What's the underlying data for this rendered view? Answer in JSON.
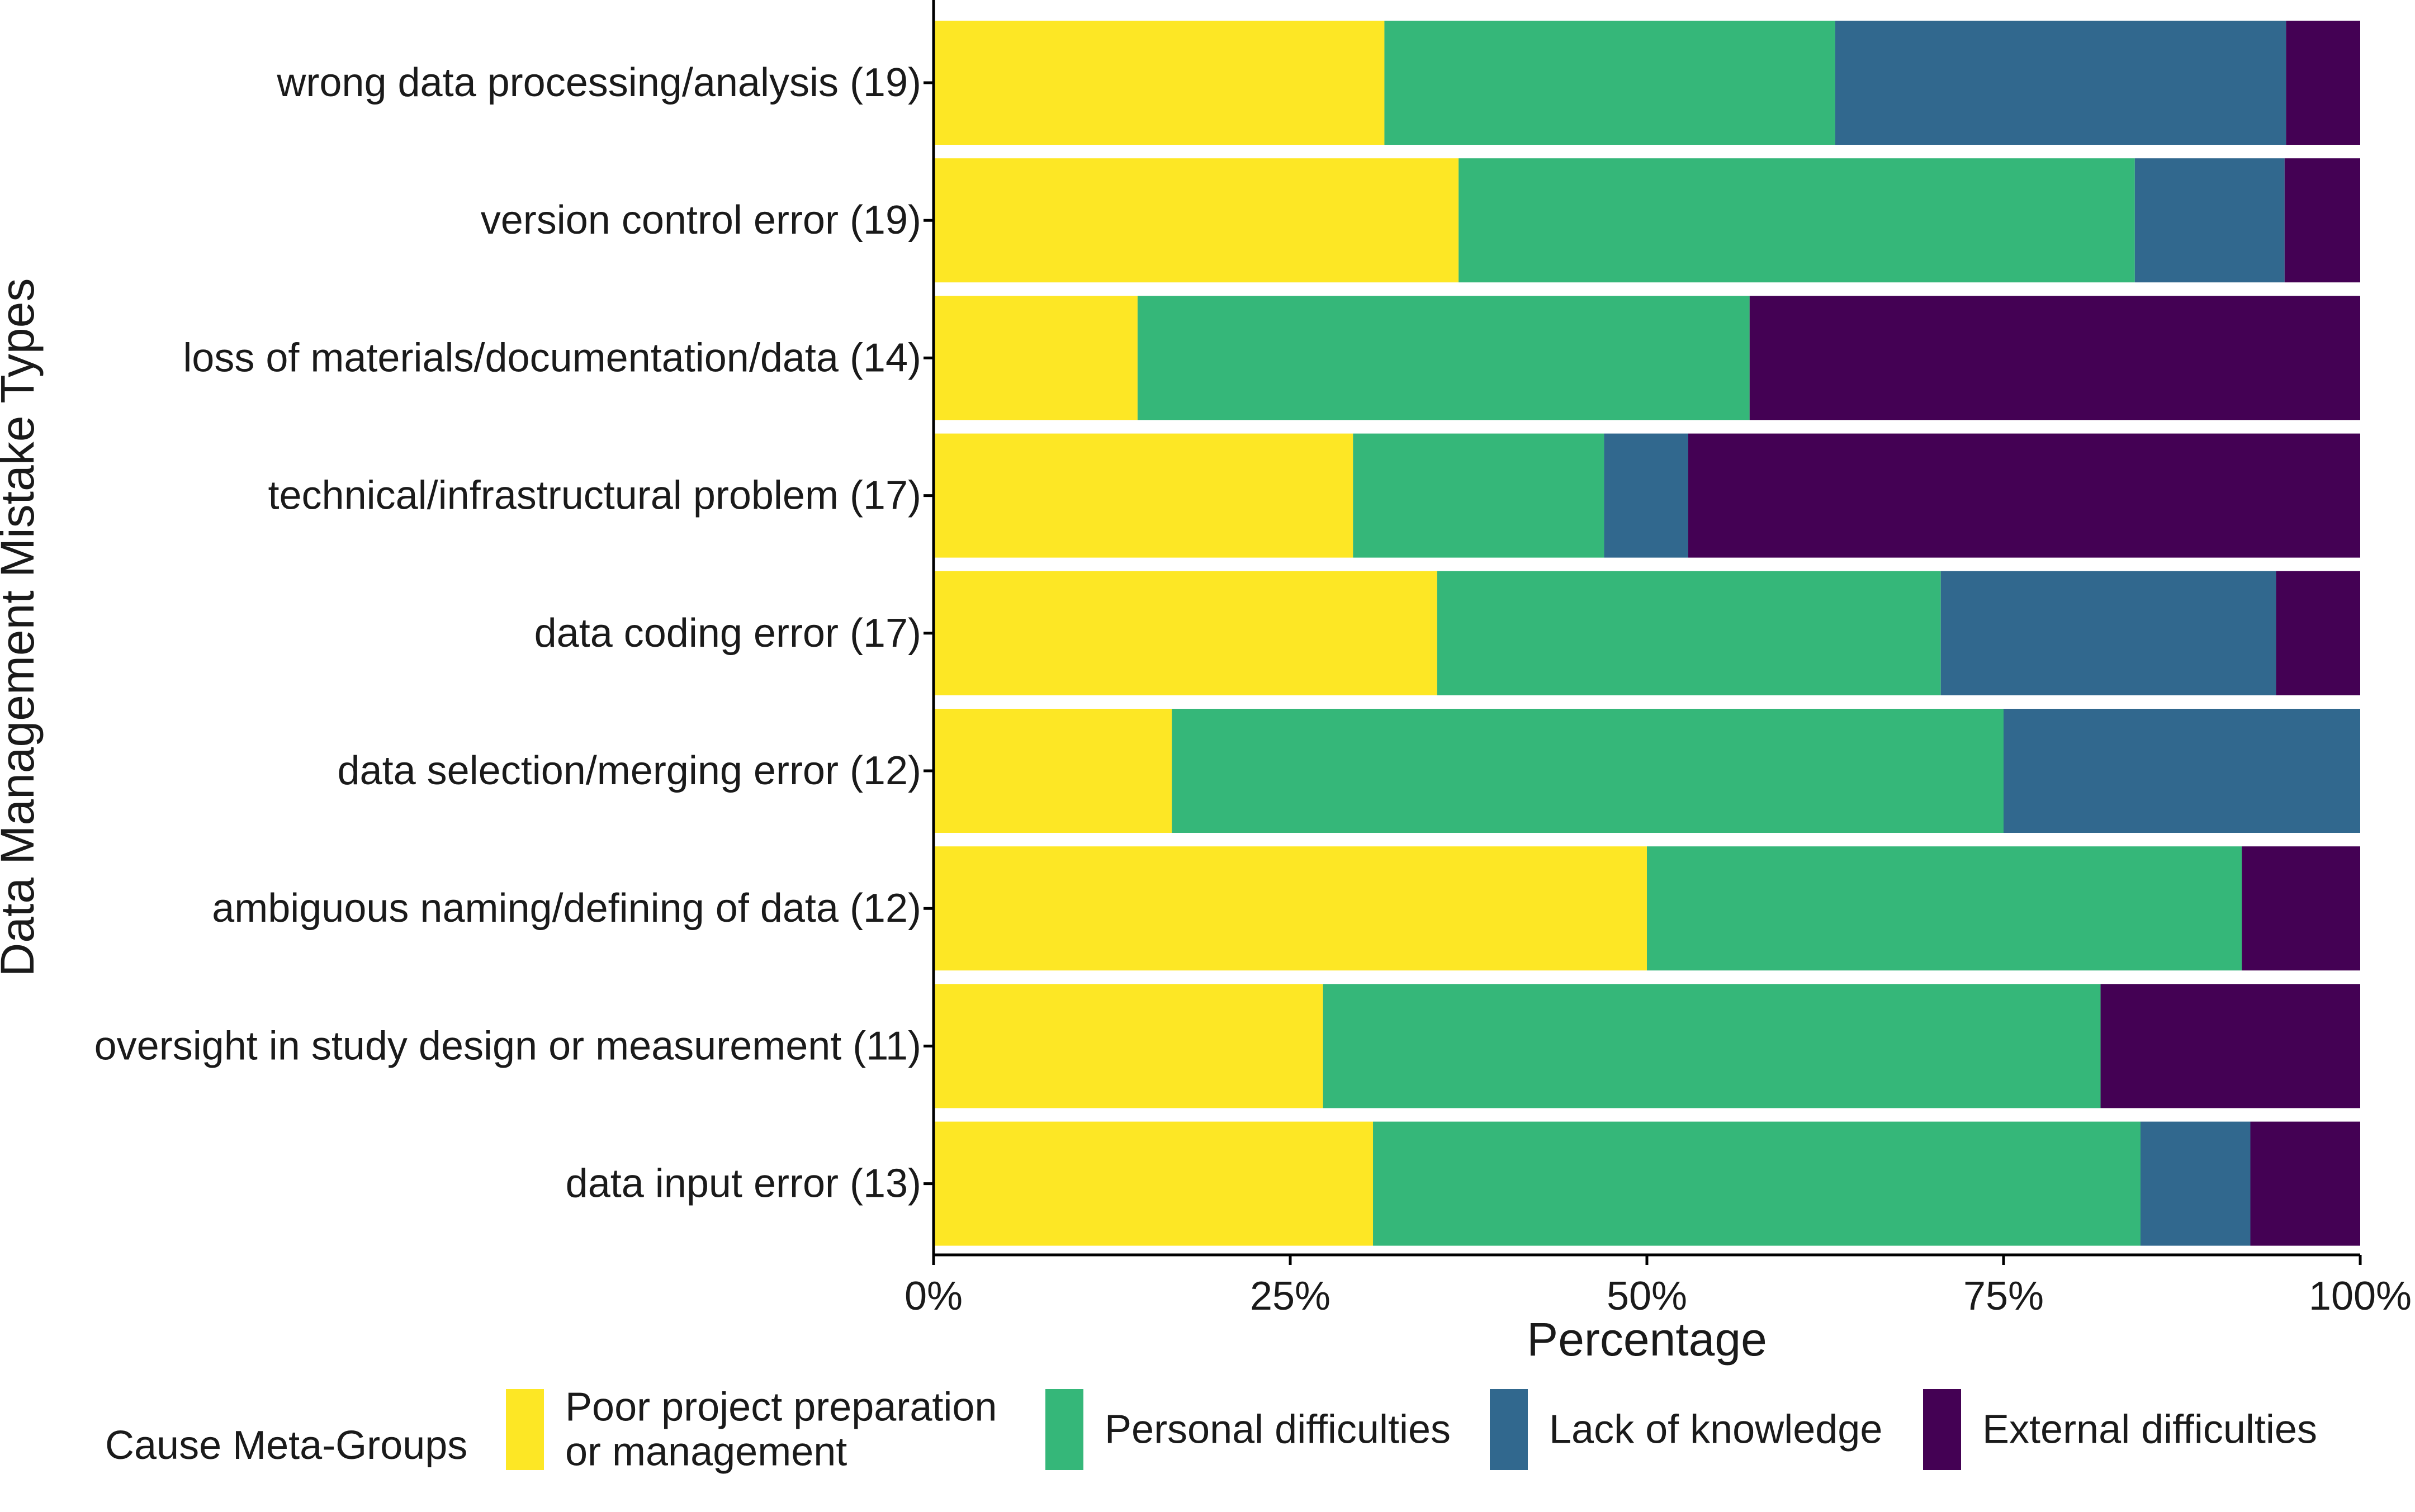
{
  "chart_data": {
    "type": "bar",
    "orientation": "horizontal",
    "stacked": true,
    "xlabel": "Percentage",
    "ylabel": "Data Management Mistake Types",
    "xlim": [
      0,
      100
    ],
    "x_ticks": [
      "0%",
      "25%",
      "50%",
      "75%",
      "100%"
    ],
    "grid": false,
    "legend_position": "bottom",
    "legend_title": "Cause Meta-Groups",
    "categories": [
      "wrong data processing/analysis (19)",
      "version control error (19)",
      "loss of materials/documentation/data (14)",
      "technical/infrastructural problem (17)",
      "data coding error (17)",
      "data selection/merging error (12)",
      "ambiguous naming/defining of data (12)",
      "oversight in study design or measurement (11)",
      "data input error (13)"
    ],
    "series": [
      {
        "name": "Poor project preparation or management",
        "legend_lines": [
          "Poor project preparation",
          "or management"
        ],
        "color": "#FDE725",
        "values": [
          31.6,
          36.8,
          14.3,
          29.4,
          35.3,
          16.7,
          50.0,
          27.3,
          30.8
        ]
      },
      {
        "name": "Personal difficulties",
        "legend_lines": [
          "Personal difficulties"
        ],
        "color": "#35B779",
        "values": [
          31.6,
          47.4,
          42.9,
          17.6,
          35.3,
          58.3,
          41.7,
          54.5,
          53.8
        ]
      },
      {
        "name": "Lack of knowledge",
        "legend_lines": [
          "Lack of knowledge"
        ],
        "color": "#31688E",
        "values": [
          31.6,
          10.5,
          0,
          5.9,
          23.5,
          25.0,
          0,
          0,
          7.7
        ]
      },
      {
        "name": "External difficulties",
        "legend_lines": [
          "External difficulties"
        ],
        "color": "#440154",
        "values": [
          5.2,
          5.3,
          42.8,
          47.1,
          5.9,
          0,
          8.3,
          18.2,
          7.7
        ]
      }
    ]
  }
}
